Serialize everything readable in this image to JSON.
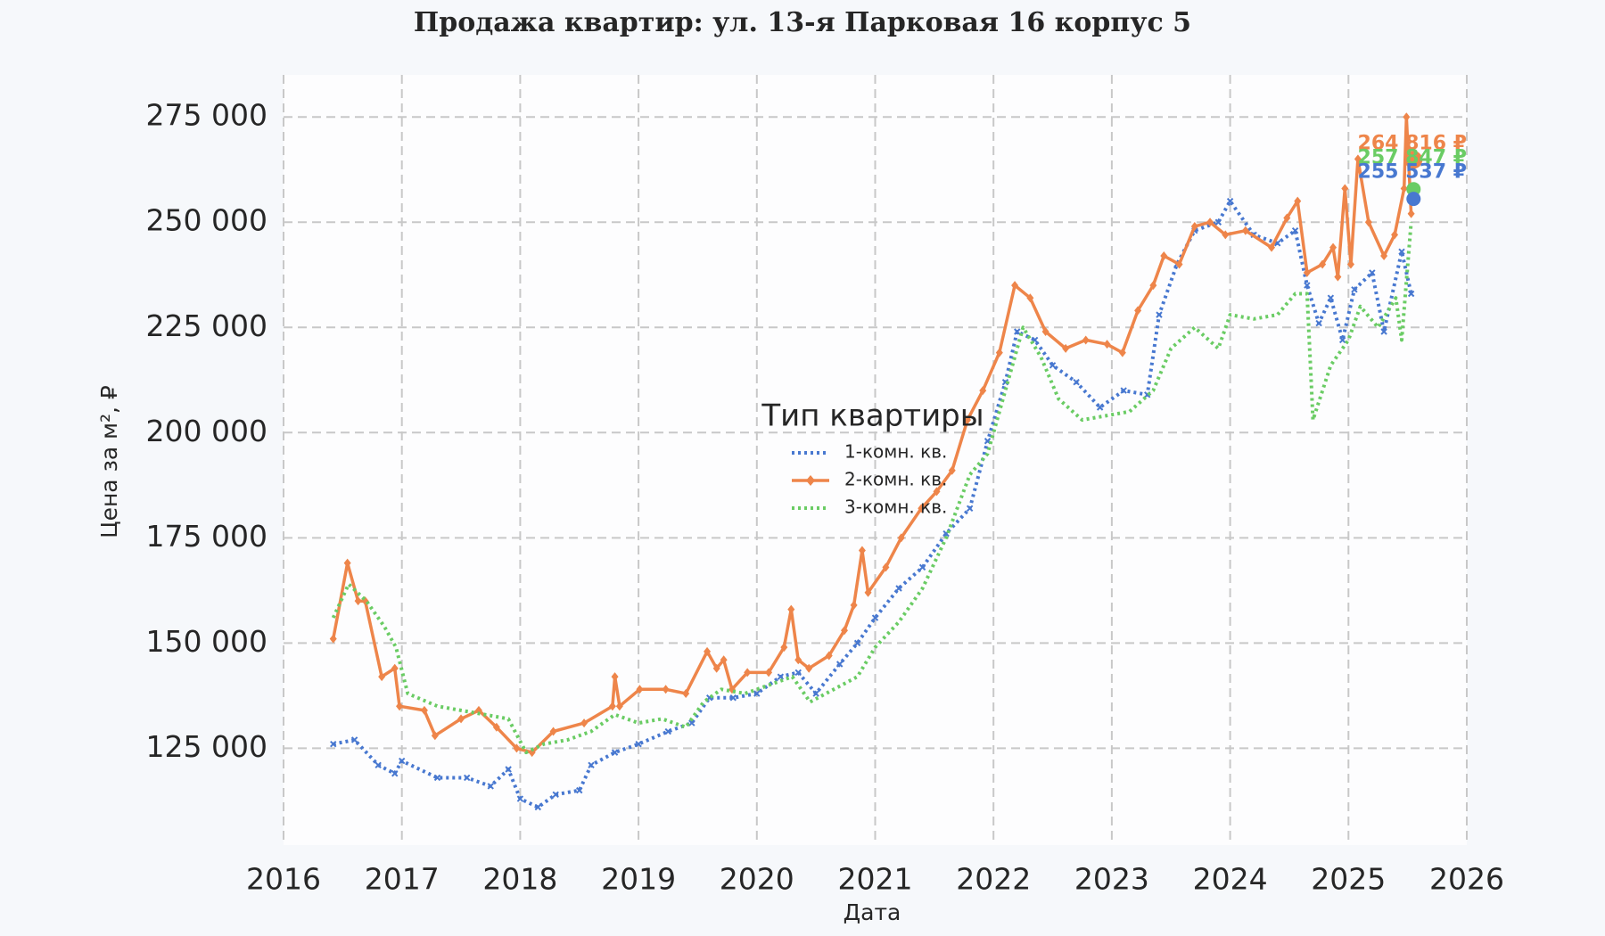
{
  "chart_data": {
    "type": "line",
    "title": "Продажа квартир: ул. 13-я Парковая 16 корпус 5",
    "x_label": "Дата",
    "y_label": "Цена за м², ₽",
    "legend_title": "Тип квартиры",
    "legend_position": "center",
    "grid": true,
    "xlim": [
      2016,
      2026
    ],
    "xticks": [
      2016,
      2017,
      2018,
      2019,
      2020,
      2021,
      2022,
      2023,
      2024,
      2025,
      2026
    ],
    "ylim": [
      102000,
      285000
    ],
    "yticks": [
      {
        "value": 125000,
        "label": "125 000"
      },
      {
        "value": 150000,
        "label": "150 000"
      },
      {
        "value": 175000,
        "label": "175 000"
      },
      {
        "value": 200000,
        "label": "200 000"
      },
      {
        "value": 225000,
        "label": "225 000"
      },
      {
        "value": 250000,
        "label": "250 000"
      },
      {
        "value": 275000,
        "label": "275 000"
      }
    ],
    "series": [
      {
        "name": "1-комн. кв.",
        "color": "#4878d0",
        "style": "dotted",
        "marker": "x",
        "x": [
          2016.42,
          2016.6,
          2016.8,
          2016.94,
          2017.0,
          2017.3,
          2017.55,
          2017.75,
          2017.9,
          2018.0,
          2018.15,
          2018.3,
          2018.5,
          2018.6,
          2018.8,
          2019.0,
          2019.25,
          2019.45,
          2019.6,
          2019.8,
          2020.0,
          2020.2,
          2020.35,
          2020.5,
          2020.7,
          2020.85,
          2021.0,
          2021.2,
          2021.4,
          2021.6,
          2021.8,
          2021.95,
          2022.1,
          2022.2,
          2022.35,
          2022.5,
          2022.7,
          2022.9,
          2023.1,
          2023.3,
          2023.4,
          2023.55,
          2023.7,
          2023.9,
          2024.0,
          2024.2,
          2024.4,
          2024.55,
          2024.65,
          2024.75,
          2024.85,
          2024.95,
          2025.05,
          2025.2,
          2025.3,
          2025.45,
          2025.53
        ],
        "values": [
          126000,
          127000,
          121000,
          119000,
          122000,
          118000,
          118000,
          116000,
          120000,
          113000,
          111000,
          114000,
          115000,
          121000,
          124000,
          126000,
          129000,
          131000,
          137000,
          137000,
          138000,
          142000,
          143000,
          138000,
          145000,
          150000,
          156000,
          163000,
          168000,
          176000,
          182000,
          198000,
          212000,
          224000,
          222000,
          216000,
          212000,
          206000,
          210000,
          209000,
          228000,
          240000,
          248000,
          250000,
          255000,
          247000,
          245000,
          248000,
          235000,
          226000,
          232000,
          222000,
          234000,
          238000,
          224000,
          243000,
          233000
        ],
        "end_x": 2025.55,
        "end_value": 255537,
        "end_label": "255 537 ₽"
      },
      {
        "name": "2-комн. кв.",
        "color": "#ee854a",
        "style": "solid",
        "marker": "diamond",
        "x": [
          2016.42,
          2016.54,
          2016.63,
          2016.69,
          2016.83,
          2016.94,
          2016.98,
          2017.19,
          2017.28,
          2017.5,
          2017.65,
          2017.8,
          2017.97,
          2018.1,
          2018.28,
          2018.54,
          2018.78,
          2018.8,
          2018.84,
          2019.01,
          2019.23,
          2019.4,
          2019.58,
          2019.66,
          2019.72,
          2019.79,
          2019.92,
          2020.1,
          2020.23,
          2020.29,
          2020.35,
          2020.44,
          2020.61,
          2020.74,
          2020.82,
          2020.89,
          2020.94,
          2021.09,
          2021.22,
          2021.39,
          2021.52,
          2021.65,
          2021.78,
          2021.91,
          2022.05,
          2022.18,
          2022.31,
          2022.44,
          2022.61,
          2022.78,
          2022.96,
          2023.09,
          2023.22,
          2023.35,
          2023.44,
          2023.57,
          2023.7,
          2023.83,
          2023.96,
          2024.13,
          2024.35,
          2024.48,
          2024.57,
          2024.65,
          2024.78,
          2024.87,
          2024.91,
          2024.97,
          2025.02,
          2025.08,
          2025.17,
          2025.3,
          2025.39,
          2025.47,
          2025.49,
          2025.53
        ],
        "values": [
          151000,
          169000,
          160000,
          160000,
          142000,
          144000,
          135000,
          134000,
          128000,
          132000,
          134000,
          130000,
          125000,
          124000,
          129000,
          131000,
          135000,
          142000,
          135000,
          139000,
          139000,
          138000,
          148000,
          144000,
          146000,
          139000,
          143000,
          143000,
          149000,
          158000,
          146000,
          144000,
          147000,
          153000,
          159000,
          172000,
          162000,
          168000,
          175000,
          182000,
          186000,
          191000,
          203000,
          210000,
          219000,
          235000,
          232000,
          224000,
          220000,
          222000,
          221000,
          219000,
          229000,
          235000,
          242000,
          240000,
          249000,
          250000,
          247000,
          248000,
          244000,
          251000,
          255000,
          238000,
          240000,
          244000,
          237000,
          258000,
          240000,
          265000,
          250000,
          242000,
          247000,
          258000,
          275000,
          252000
        ],
        "end_x": 2025.55,
        "end_value": 264816,
        "end_label": "264 816 ₽"
      },
      {
        "name": "3-комн. кв.",
        "color": "#6acc64",
        "style": "dotted",
        "marker": "none",
        "x": [
          2016.42,
          2016.55,
          2016.7,
          2016.85,
          2016.95,
          2017.05,
          2017.3,
          2017.5,
          2017.7,
          2017.9,
          2018.05,
          2018.2,
          2018.4,
          2018.6,
          2018.8,
          2019.0,
          2019.2,
          2019.4,
          2019.55,
          2019.7,
          2019.9,
          2020.1,
          2020.3,
          2020.45,
          2020.65,
          2020.85,
          2021.0,
          2021.2,
          2021.4,
          2021.6,
          2021.8,
          2021.95,
          2022.1,
          2022.25,
          2022.4,
          2022.55,
          2022.75,
          2022.95,
          2023.15,
          2023.35,
          2023.5,
          2023.7,
          2023.9,
          2024.0,
          2024.2,
          2024.4,
          2024.55,
          2024.65,
          2024.7,
          2024.85,
          2025.0,
          2025.1,
          2025.25,
          2025.4,
          2025.45,
          2025.53
        ],
        "values": [
          156000,
          164000,
          160000,
          154000,
          149000,
          138000,
          135000,
          134000,
          133000,
          132000,
          124000,
          126000,
          127000,
          129000,
          133000,
          131000,
          132000,
          130000,
          136000,
          139000,
          138000,
          140000,
          142000,
          136000,
          139000,
          142000,
          149000,
          155000,
          163000,
          175000,
          190000,
          195000,
          210000,
          225000,
          218000,
          208000,
          203000,
          204000,
          205000,
          210000,
          220000,
          225000,
          220000,
          228000,
          227000,
          228000,
          233000,
          233000,
          203000,
          216000,
          222000,
          230000,
          225000,
          232000,
          222000,
          250000
        ],
        "end_x": 2025.55,
        "end_value": 257847,
        "end_label": "257 847 ₽"
      }
    ]
  }
}
